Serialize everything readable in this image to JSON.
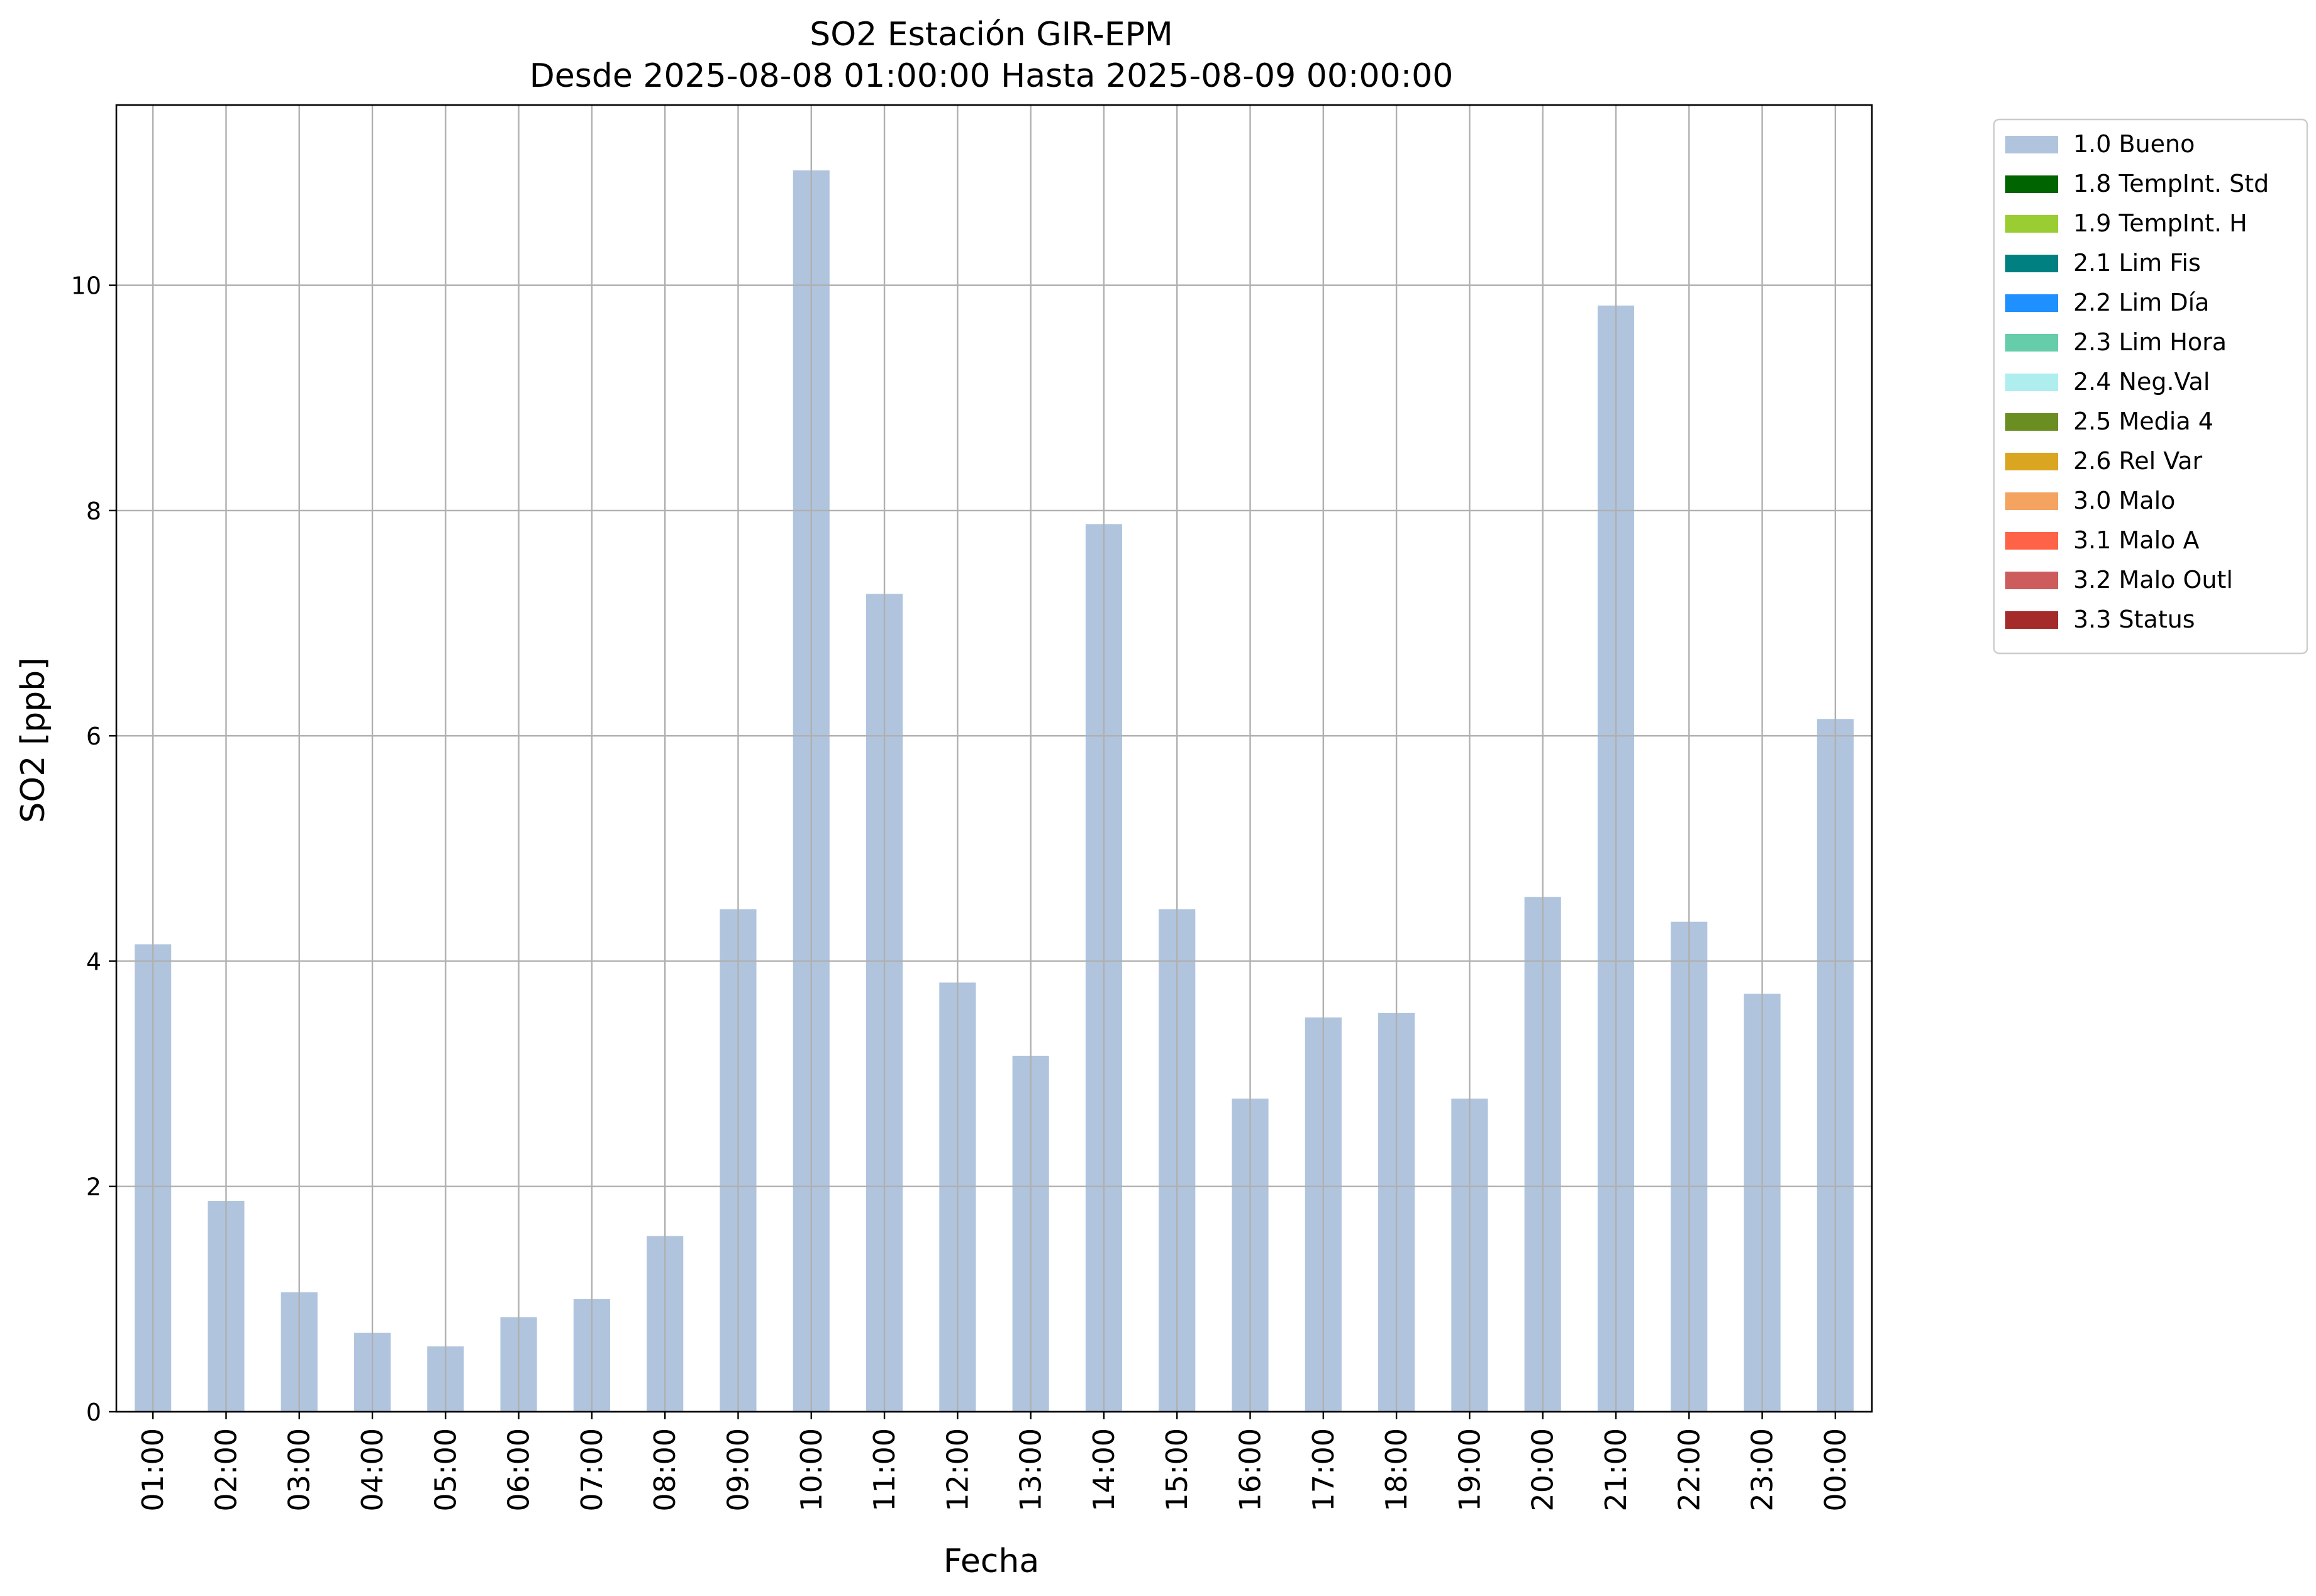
{
  "chart_data": {
    "type": "bar",
    "title": "SO2 Estación GIR-EPM",
    "subtitle": "Desde 2025-08-08 01:00:00 Hasta 2025-08-09 00:00:00",
    "xlabel": "Fecha",
    "ylabel": "SO2 [ppb]",
    "ylim": [
      0,
      11.6
    ],
    "yticks": [
      0,
      2,
      4,
      6,
      8,
      10
    ],
    "grid": true,
    "legend_position": "outside-top-right",
    "categories": [
      "01:00",
      "02:00",
      "03:00",
      "04:00",
      "05:00",
      "06:00",
      "07:00",
      "08:00",
      "09:00",
      "10:00",
      "11:00",
      "12:00",
      "13:00",
      "14:00",
      "15:00",
      "16:00",
      "17:00",
      "18:00",
      "19:00",
      "20:00",
      "21:00",
      "22:00",
      "23:00",
      "00:00"
    ],
    "series": [
      {
        "name": "1.0 Bueno",
        "color": "#b0c4de",
        "values": [
          4.15,
          1.87,
          1.06,
          0.7,
          0.58,
          0.84,
          1.0,
          1.56,
          4.46,
          11.02,
          7.26,
          3.81,
          3.16,
          7.88,
          4.46,
          2.78,
          3.5,
          3.54,
          2.78,
          4.57,
          9.82,
          4.35,
          3.71,
          6.15
        ]
      }
    ],
    "legend": [
      {
        "label": "1.0 Bueno",
        "color": "#b0c4de"
      },
      {
        "label": "1.8 TempInt. Std",
        "color": "#006400"
      },
      {
        "label": "1.9 TempInt. H",
        "color": "#9acd32"
      },
      {
        "label": "2.1 Lim Fis",
        "color": "#008080"
      },
      {
        "label": "2.2 Lim Día",
        "color": "#1e90ff"
      },
      {
        "label": "2.3 Lim Hora",
        "color": "#66cdaa"
      },
      {
        "label": "2.4 Neg.Val",
        "color": "#afeeee"
      },
      {
        "label": "2.5 Media 4",
        "color": "#6b8e23"
      },
      {
        "label": "2.6 Rel Var",
        "color": "#daa520"
      },
      {
        "label": "3.0 Malo",
        "color": "#f4a460"
      },
      {
        "label": "3.1 Malo A",
        "color": "#ff6347"
      },
      {
        "label": "3.2 Malo Outl",
        "color": "#cd5c5c"
      },
      {
        "label": "3.3 Status",
        "color": "#a52a2a"
      }
    ]
  }
}
